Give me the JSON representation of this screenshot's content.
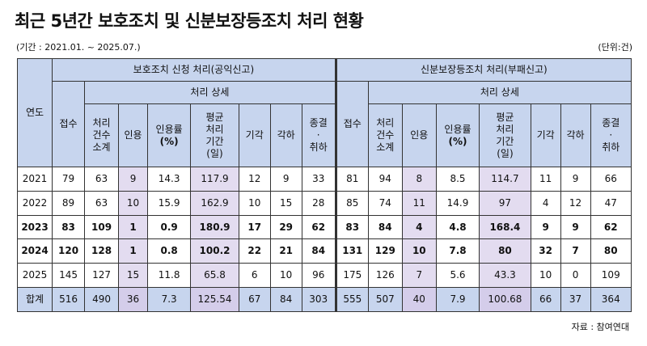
{
  "title": "최근 5년간 보호조치 및 신분보장등조치 처리 현황",
  "period": "(기간 : 2021.01. ~ 2025.07.)",
  "unit": "(단위:건)",
  "source": "자료 : 참여연대",
  "table": {
    "year_header": "연도",
    "group1": "보호조치 신청 처리(공익신고)",
    "group2": "신분보장등조치 처리(부패신고)",
    "detail1": "처리 상세",
    "detail2": "처리 상세",
    "cols": {
      "received": "접수",
      "total_lines": [
        "처리",
        "건수",
        "소계"
      ],
      "accepted": "인용",
      "rate_lines": [
        "인용률",
        "(%)"
      ],
      "avg_lines": [
        "평균",
        "처리",
        "기간",
        "(일)"
      ],
      "rejected": "기각",
      "dismissed": "각하",
      "ended_lines": [
        "종결",
        "·",
        "취하"
      ]
    },
    "rows": [
      {
        "year": "2021",
        "bold": false,
        "a": [
          "79",
          "63",
          "9",
          "14.3",
          "117.9",
          "12",
          "9",
          "33"
        ],
        "b": [
          "81",
          "94",
          "8",
          "8.5",
          "114.7",
          "11",
          "9",
          "66"
        ]
      },
      {
        "year": "2022",
        "bold": false,
        "a": [
          "89",
          "63",
          "10",
          "15.9",
          "162.9",
          "10",
          "15",
          "28"
        ],
        "b": [
          "85",
          "74",
          "11",
          "14.9",
          "97",
          "4",
          "12",
          "47"
        ]
      },
      {
        "year": "2023",
        "bold": true,
        "a": [
          "83",
          "109",
          "1",
          "0.9",
          "180.9",
          "17",
          "29",
          "62"
        ],
        "b": [
          "83",
          "84",
          "4",
          "4.8",
          "168.4",
          "9",
          "9",
          "62"
        ]
      },
      {
        "year": "2024",
        "bold": true,
        "a": [
          "120",
          "128",
          "1",
          "0.8",
          "100.2",
          "22",
          "21",
          "84"
        ],
        "b": [
          "131",
          "129",
          "10",
          "7.8",
          "80",
          "32",
          "7",
          "80"
        ]
      },
      {
        "year": "2025",
        "bold": false,
        "a": [
          "145",
          "127",
          "15",
          "11.8",
          "65.8",
          "6",
          "10",
          "96"
        ],
        "b": [
          "175",
          "126",
          "7",
          "5.6",
          "43.3",
          "10",
          "0",
          "109"
        ]
      },
      {
        "year": "합계",
        "bold": false,
        "total": true,
        "a": [
          "516",
          "490",
          "36",
          "7.3",
          "125.54",
          "67",
          "84",
          "303"
        ],
        "b": [
          "555",
          "507",
          "40",
          "7.9",
          "100.68",
          "66",
          "37",
          "364"
        ]
      }
    ]
  }
}
